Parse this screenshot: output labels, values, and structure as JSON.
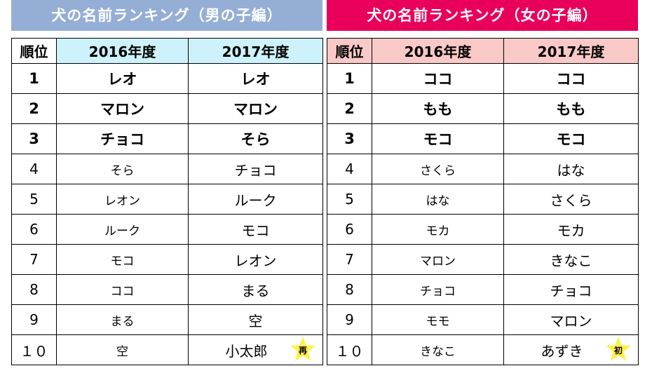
{
  "headers": [
    "順位",
    "2016年度",
    "2017年度"
  ],
  "boys": {
    "title": "犬の名前ランキング（男の子編）",
    "rows": [
      {
        "rank": "1",
        "y2016": "レオ",
        "y2017": "レオ"
      },
      {
        "rank": "2",
        "y2016": "マロン",
        "y2017": "マロン"
      },
      {
        "rank": "3",
        "y2016": "チョコ",
        "y2017": "そら"
      },
      {
        "rank": "4",
        "y2016": "そら",
        "y2017": "チョコ"
      },
      {
        "rank": "5",
        "y2016": "レオン",
        "y2017": "ルーク"
      },
      {
        "rank": "6",
        "y2016": "ルーク",
        "y2017": "モコ"
      },
      {
        "rank": "7",
        "y2016": "モコ",
        "y2017": "レオン"
      },
      {
        "rank": "8",
        "y2016": "ココ",
        "y2017": "まる"
      },
      {
        "rank": "9",
        "y2016": "まる",
        "y2017": "空"
      },
      {
        "rank": "１０",
        "y2016": "空",
        "y2017": "小太郎"
      }
    ],
    "badge": "再"
  },
  "girls": {
    "title": "犬の名前ランキング（女の子編）",
    "rows": [
      {
        "rank": "1",
        "y2016": "ココ",
        "y2017": "ココ"
      },
      {
        "rank": "2",
        "y2016": "もも",
        "y2017": "もも"
      },
      {
        "rank": "3",
        "y2016": "モコ",
        "y2017": "モコ"
      },
      {
        "rank": "4",
        "y2016": "さくら",
        "y2017": "はな"
      },
      {
        "rank": "5",
        "y2016": "はな",
        "y2017": "さくら"
      },
      {
        "rank": "6",
        "y2016": "モカ",
        "y2017": "モカ"
      },
      {
        "rank": "7",
        "y2016": "マロン",
        "y2017": "きなこ"
      },
      {
        "rank": "8",
        "y2016": "チョコ",
        "y2017": "チョコ"
      },
      {
        "rank": "9",
        "y2016": "モモ",
        "y2017": "マロン"
      },
      {
        "rank": "１０",
        "y2016": "きなこ",
        "y2017": "あずき"
      }
    ],
    "badge": "初"
  },
  "colors": {
    "boys_banner": "#95aed6",
    "girls_banner": "#e8005a",
    "boys_header": "#cdf2fb",
    "girls_header": "#f9c9c7",
    "star": "#fff04a"
  }
}
